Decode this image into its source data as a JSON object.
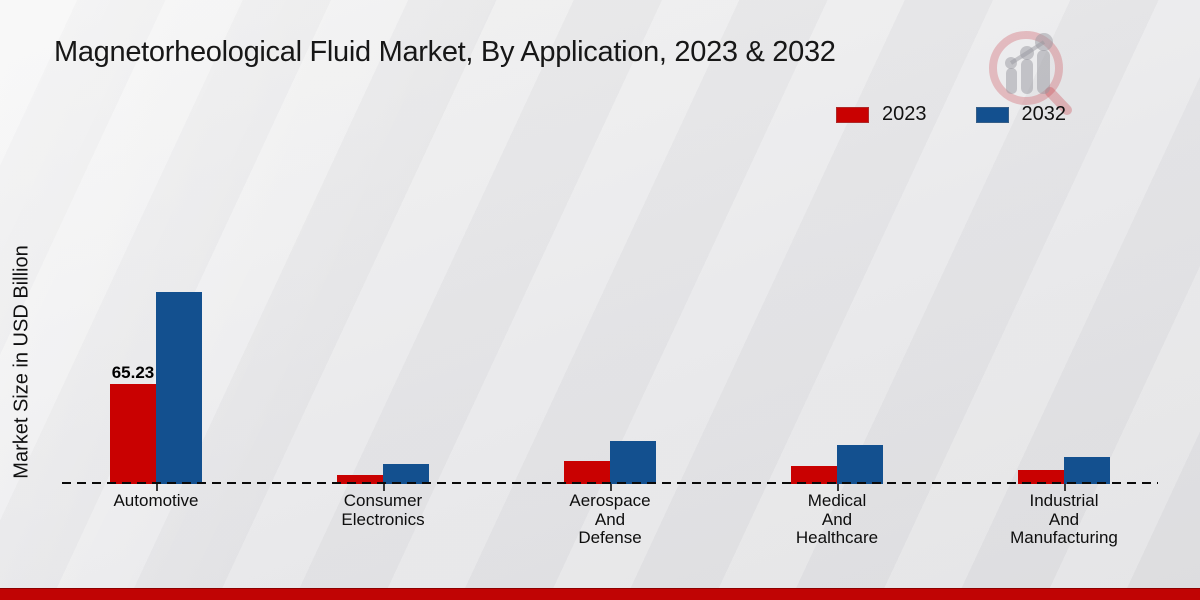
{
  "title": "Magnetorheological Fluid Market, By Application, 2023 & 2032",
  "ylabel": "Market Size in USD Billion",
  "legend": [
    {
      "label": "2023",
      "color": "#c90101"
    },
    {
      "label": "2032",
      "color": "#13508f"
    }
  ],
  "colors": {
    "bar_2023": "#c90101",
    "bar_2032": "#13508f",
    "background": "#e8e8ea",
    "footer_strip": "#c00404",
    "baseline": "#0a0a0a",
    "text": "#171717"
  },
  "annotation": {
    "category": "Automotive",
    "series": "2023",
    "text": "65.23"
  },
  "chart_data": {
    "type": "bar",
    "categories": [
      "Automotive",
      "Consumer Electronics",
      "Aerospace And Defense",
      "Medical And Healthcare",
      "Industrial And Manufacturing"
    ],
    "category_lines": [
      [
        "Automotive"
      ],
      [
        "Consumer",
        "Electronics"
      ],
      [
        "Aerospace",
        "And",
        "Defense"
      ],
      [
        "Medical",
        "And",
        "Healthcare"
      ],
      [
        "Industrial",
        "And",
        "Manufacturing"
      ]
    ],
    "series": [
      {
        "name": "2023",
        "color": "#c90101",
        "values": [
          65.23,
          5.9,
          15.0,
          11.7,
          9.4
        ]
      },
      {
        "name": "2032",
        "color": "#13508f",
        "values": [
          125.2,
          13.0,
          28.1,
          25.4,
          17.6
        ]
      }
    ],
    "title": "Magnetorheological Fluid Market, By Application, 2023 & 2032",
    "xlabel": "",
    "ylabel": "Market Size in USD Billion",
    "ylim": [
      0,
      135
    ],
    "grid": false,
    "y_axis_ticks_visible": false,
    "legend_position": "top-right",
    "baseline_style": "dashed",
    "data_labels": [
      {
        "series": "2023",
        "category": "Automotive",
        "value": "65.23"
      }
    ]
  }
}
